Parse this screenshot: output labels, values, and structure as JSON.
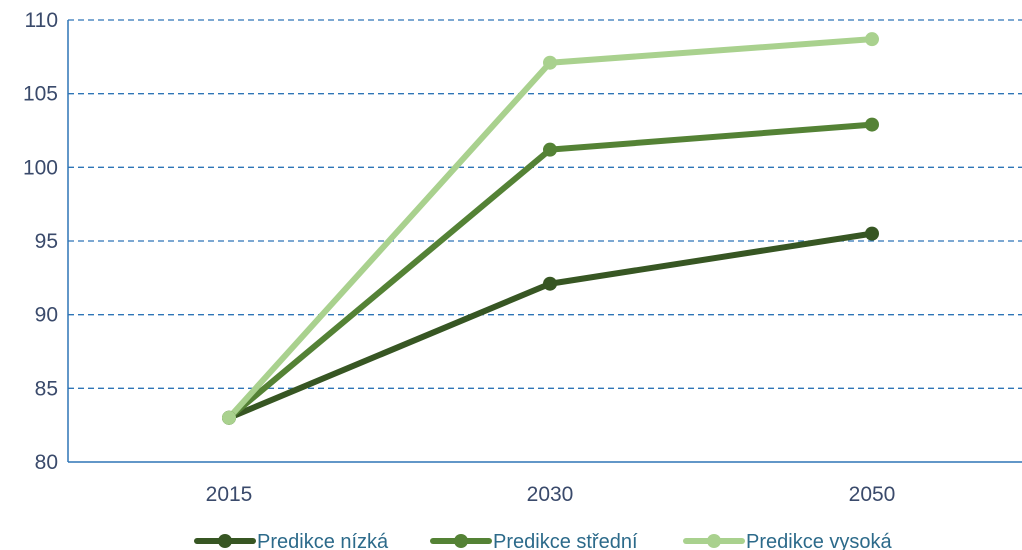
{
  "chart_data": {
    "type": "line",
    "title": "",
    "xlabel": "",
    "ylabel": "",
    "categories": [
      "2015",
      "2030",
      "2050"
    ],
    "ylim": [
      80,
      110
    ],
    "yticks": [
      80,
      85,
      90,
      95,
      100,
      105,
      110
    ],
    "ytick_labels": [
      "80",
      "85",
      "90",
      "95",
      "100",
      "105",
      "110"
    ],
    "grid": "horizontal dashed",
    "legend_position": "bottom",
    "series": [
      {
        "name": "Predikce nízká",
        "values": [
          83.0,
          92.1,
          95.5
        ],
        "color": "#375623"
      },
      {
        "name": "Predikce střední",
        "values": [
          83.0,
          101.2,
          102.9
        ],
        "color": "#548235"
      },
      {
        "name": "Predikce vysoká",
        "values": [
          83.0,
          107.1,
          108.7
        ],
        "color": "#a9d18e"
      }
    ],
    "colors": {
      "grid": "#2e75b6",
      "axis": "#2e75b6",
      "tick_text": "#3a4a6b"
    }
  }
}
